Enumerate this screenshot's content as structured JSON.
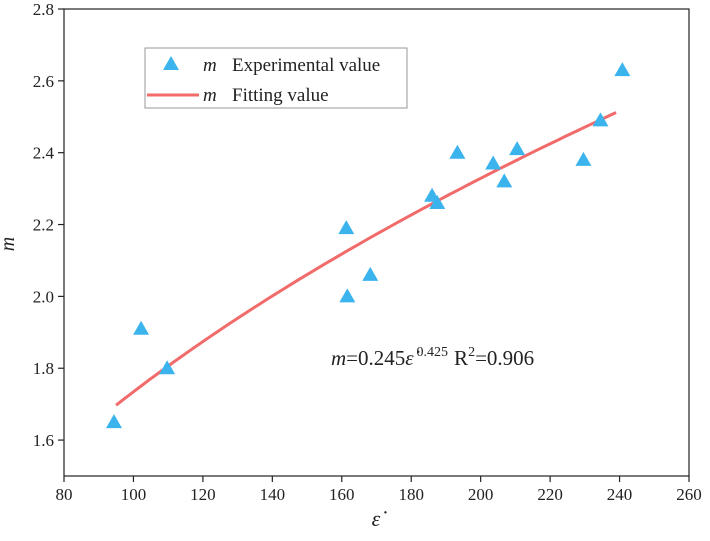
{
  "chart_data": {
    "type": "scatter",
    "title": "",
    "xlabel": "ε̇",
    "ylabel": "m",
    "xlim": [
      80,
      260
    ],
    "ylim": [
      1.5,
      2.8
    ],
    "xticks": [
      80,
      100,
      120,
      140,
      160,
      180,
      200,
      220,
      240,
      260
    ],
    "yticks": [
      1.6,
      1.8,
      2.0,
      2.2,
      2.4,
      2.6,
      2.8
    ],
    "grid": false,
    "legend_position": "top-left",
    "series": [
      {
        "name": "m Experimental value",
        "legend_symbol": "m",
        "legend_text": "Experimental value",
        "kind": "scatter",
        "marker": "triangle",
        "color": "#3BB4EE",
        "x": [
          94.4,
          102.2,
          109.7,
          161.3,
          161.6,
          168.2,
          186.0,
          187.5,
          193.3,
          203.6,
          206.8,
          210.5,
          229.6,
          234.5,
          240.8
        ],
        "y": [
          1.65,
          1.91,
          1.8,
          2.19,
          2.0,
          2.06,
          2.28,
          2.26,
          2.4,
          2.37,
          2.32,
          2.41,
          2.38,
          2.49,
          2.63
        ]
      },
      {
        "name": "m Fitting value",
        "legend_symbol": "m",
        "legend_text": "Fitting value",
        "kind": "line",
        "color": "#F26B6B",
        "model": {
          "coefficient": 0.245,
          "exponent": 0.425
        },
        "x_range": [
          95,
          239
        ]
      }
    ],
    "annotation": {
      "lhs": "m",
      "coef": "=0.245",
      "var": "ε̇",
      "exp": "0.425",
      "r": "R",
      "r_sup": "2",
      "r_val": "=0.906"
    }
  }
}
